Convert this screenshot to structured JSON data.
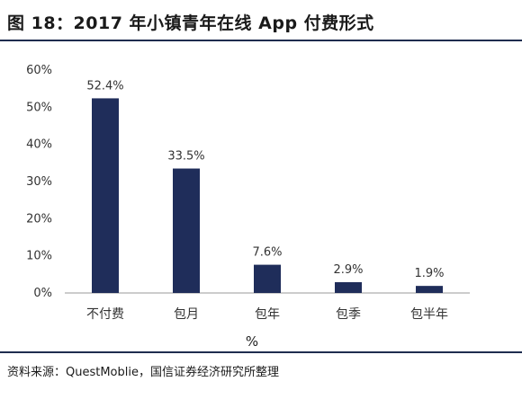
{
  "header": {
    "title": "图 18：2017 年小镇青年在线 App 付费形式"
  },
  "source": "资料来源：QuestMoblie，国信证券经济研究所整理",
  "chart_data": {
    "type": "bar",
    "categories": [
      "不付费",
      "包月",
      "包年",
      "包季",
      "包半年"
    ],
    "values": [
      52.4,
      33.5,
      7.6,
      2.9,
      1.9
    ],
    "data_labels": [
      "52.4%",
      "33.5%",
      "7.6%",
      "2.9%",
      "1.9%"
    ],
    "y_ticks": [
      "0%",
      "10%",
      "20%",
      "30%",
      "40%",
      "50%",
      "60%"
    ],
    "ylim": [
      0,
      60
    ],
    "xlabel": "%",
    "ylabel": "",
    "title": "",
    "grid": false,
    "bar_color": "#1f2d5a"
  }
}
